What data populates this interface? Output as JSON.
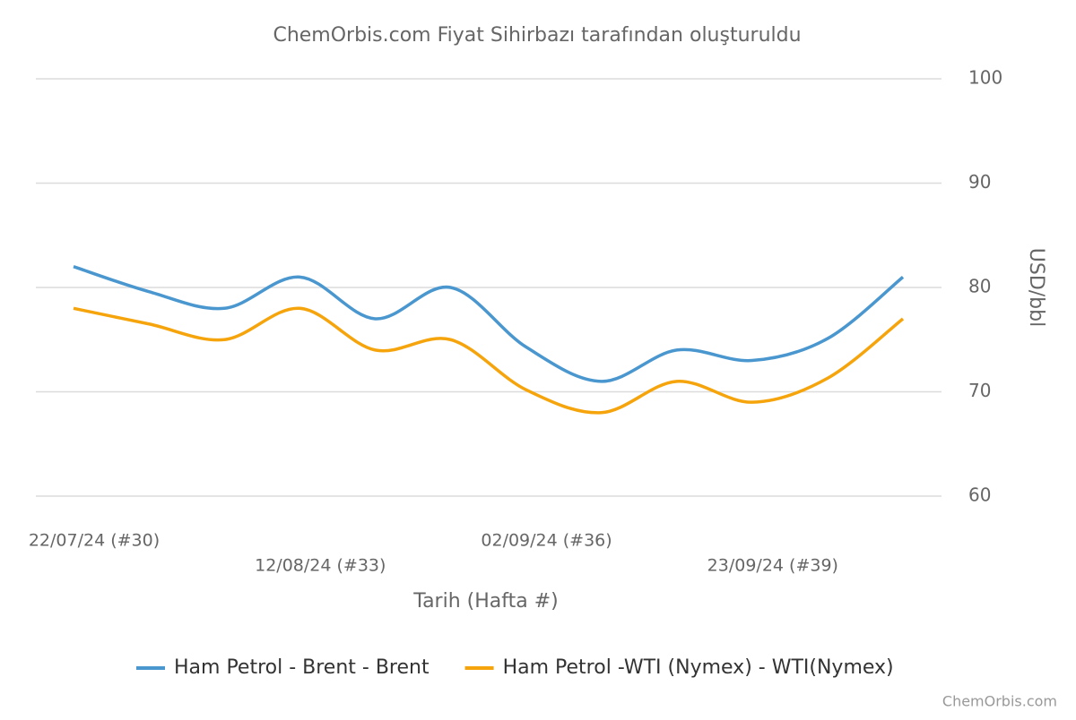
{
  "chart_data": {
    "type": "line",
    "title": "ChemOrbis.com Fiyat Sihirbazı tarafından oluşturuldu",
    "x_label": "Tarih (Hafta #)",
    "y_label": "USD/bbl",
    "source": "ChemOrbis.com",
    "categories": [
      "22/07/24 (#30)",
      null,
      null,
      "12/08/24 (#33)",
      null,
      null,
      "02/09/24 (#36)",
      null,
      null,
      "23/09/24 (#39)",
      null,
      null
    ],
    "series": [
      {
        "name": "Ham Petrol - Brent - Brent",
        "color": "#4a97cf",
        "values": [
          82,
          79.6,
          78,
          81,
          77,
          80,
          74.3,
          71,
          74,
          73,
          75.1,
          81
        ]
      },
      {
        "name": "Ham Petrol -WTI (Nymex) - WTI(Nymex)",
        "color": "#f5a40c",
        "values": [
          78,
          76.5,
          75,
          78,
          74,
          75,
          70.2,
          68,
          71,
          69,
          71.3,
          77
        ]
      }
    ],
    "ylim": [
      60,
      100
    ],
    "yticks": [
      60,
      70,
      80,
      90,
      100
    ],
    "grid": true,
    "y_axis_side": "right",
    "legend": "bottom"
  }
}
